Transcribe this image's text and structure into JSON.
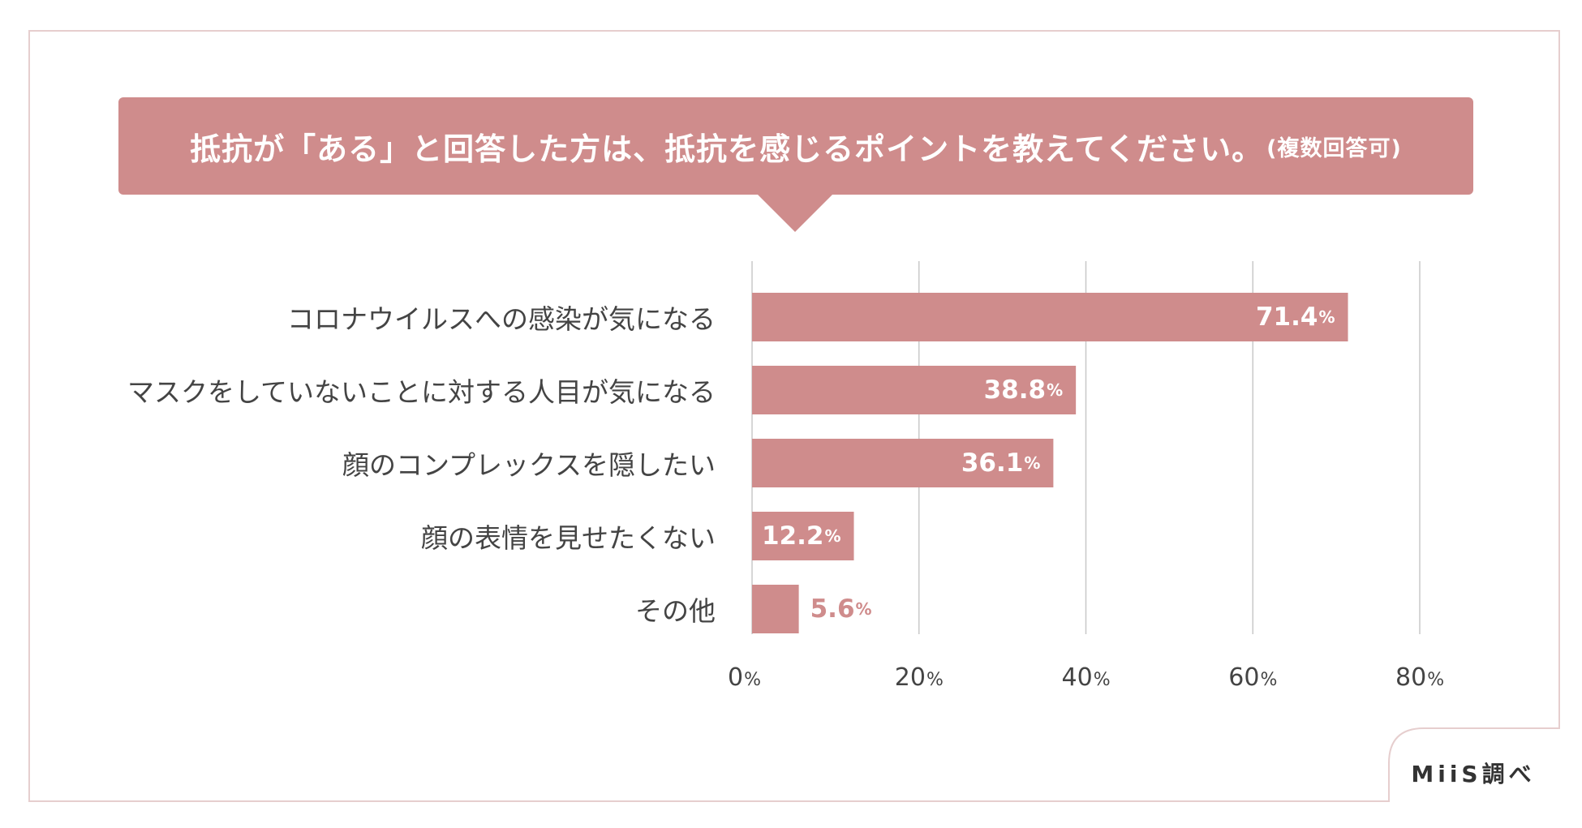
{
  "title": {
    "main": "抵抗が「ある」と回答した方は、抵抗を感じるポイントを教えてください。",
    "note": "(複数回答可)"
  },
  "colors": {
    "accent": "#cf8c8c",
    "frame": "#e6cece",
    "grid": "#c8c8c8"
  },
  "source": "MiiS調べ",
  "chart_data": {
    "type": "bar",
    "orientation": "horizontal",
    "categories": [
      "コロナウイルスへの感染が気になる",
      "マスクをしていないことに対する人目が気になる",
      "顔のコンプレックスを隠したい",
      "顔の表情を見せたくない",
      "その他"
    ],
    "values": [
      71.4,
      38.8,
      36.1,
      12.2,
      5.6
    ],
    "value_labels": [
      "71.4",
      "38.8",
      "36.1",
      "12.2",
      "5.6"
    ],
    "unit": "%",
    "xlim": [
      0,
      80
    ],
    "xticks": [
      0,
      20,
      40,
      60,
      80
    ],
    "xtick_labels": [
      "0",
      "20",
      "40",
      "60",
      "80"
    ],
    "grid": true,
    "legend": "none"
  }
}
